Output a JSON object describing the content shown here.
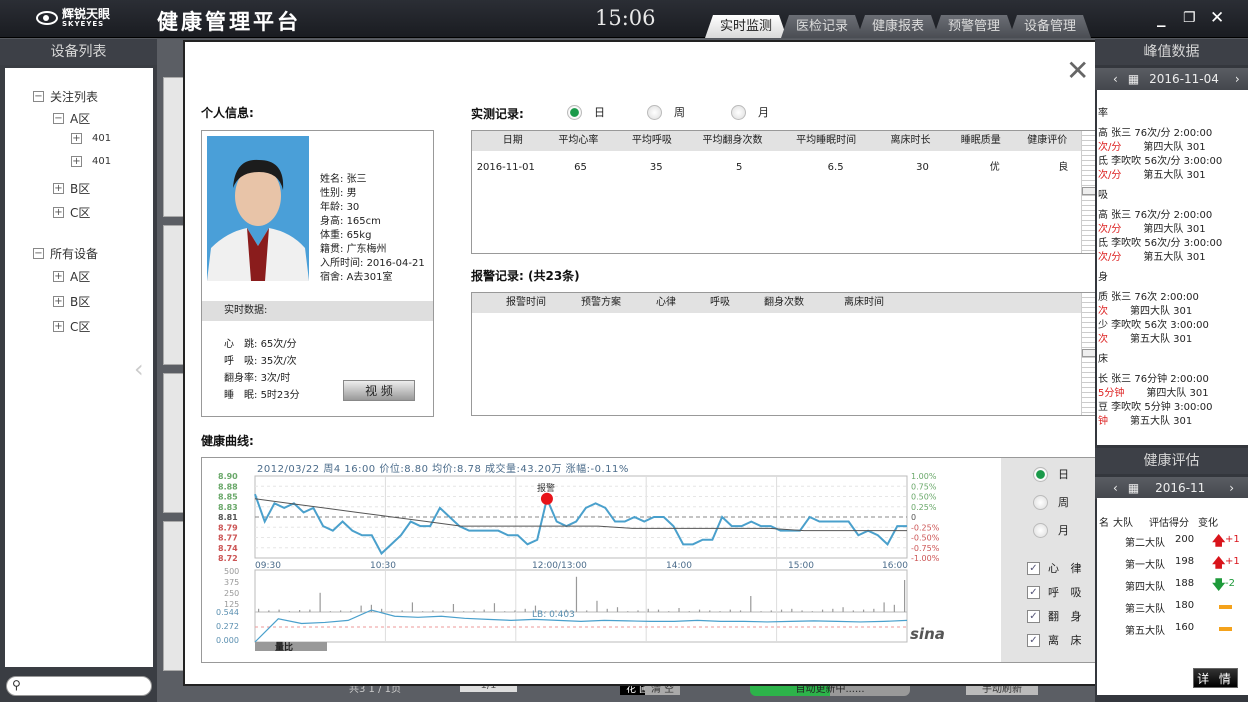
{
  "app": {
    "logo_cn": "辉锐天眼",
    "logo_en": "SKYEYES",
    "title": "健康管理平台",
    "clock": "15:06",
    "tabs": [
      {
        "label": "实时监测",
        "active": true
      },
      {
        "label": "医检记录"
      },
      {
        "label": "健康报表"
      },
      {
        "label": "预警管理"
      },
      {
        "label": "设备管理"
      }
    ]
  },
  "left": {
    "title": "设备列表",
    "tree": [
      {
        "label": "关注列表",
        "sign": "−"
      },
      {
        "label": "A区",
        "sign": "−"
      },
      {
        "label": "401",
        "sign": "+"
      },
      {
        "label": "401",
        "sign": "+"
      },
      {
        "label": "B区",
        "sign": "+"
      },
      {
        "label": "C区",
        "sign": "+"
      },
      {
        "label": "所有设备",
        "sign": "−"
      },
      {
        "label": "A区",
        "sign": "+"
      },
      {
        "label": "B区",
        "sign": "+"
      },
      {
        "label": "C区",
        "sign": "+"
      }
    ]
  },
  "bottom": {
    "under_texts": [
      "共3 1 / 1页",
      "1/1",
      "花 圃",
      "清 空",
      "自动更新中......",
      "手动刷新"
    ],
    "progress_color": "#2db34a"
  },
  "modal": {
    "personal_title": "个人信息:",
    "person": [
      {
        "k": "姓名",
        "v": "张三"
      },
      {
        "k": "性别",
        "v": "男"
      },
      {
        "k": "年龄",
        "v": "30"
      },
      {
        "k": "身高",
        "v": "165cm"
      },
      {
        "k": "体重",
        "v": "65kg"
      },
      {
        "k": "籍贯",
        "v": "广东梅州"
      },
      {
        "k": "入所时间",
        "v": "2016-04-21"
      },
      {
        "k": "宿舍",
        "v": "A去301室"
      }
    ],
    "realtime_title": "实时数据:",
    "realtime": [
      {
        "k": "心　跳",
        "v": "65次/分"
      },
      {
        "k": "呼　吸",
        "v": "35次/次"
      },
      {
        "k": "翻身率",
        "v": "3次/时"
      },
      {
        "k": "睡　眠",
        "v": "5时23分"
      }
    ],
    "video_button": "视 频",
    "records_title": "实测记录:",
    "period": [
      {
        "label": "日",
        "selected": true
      },
      {
        "label": "周"
      },
      {
        "label": "月"
      }
    ],
    "records": {
      "columns": [
        "日期",
        "平均心率",
        "平均呼吸",
        "平均翻身次数",
        "平均睡眠时间",
        "离床时长",
        "睡眠质量",
        "健康评价"
      ],
      "rows": [
        [
          "2016-11-01",
          "65",
          "35",
          "5",
          "6.5",
          "30",
          "优",
          "良"
        ]
      ]
    },
    "alarm_title": "报警记录:",
    "alarm_count": "(共23条)",
    "alarms": {
      "columns": [
        "报警时间",
        "预警方案",
        "心律",
        "呼吸",
        "翻身次数",
        "离床时间"
      ],
      "rows": []
    },
    "curve_title": "健康曲线:",
    "curve_period": [
      {
        "label": "日",
        "selected": true
      },
      {
        "label": "周"
      },
      {
        "label": "月"
      }
    ],
    "curve_series": [
      {
        "label": "心 律",
        "checked": true
      },
      {
        "label": "呼 吸",
        "checked": true
      },
      {
        "label": "翻 身",
        "checked": true
      },
      {
        "label": "离 床",
        "checked": true
      }
    ]
  },
  "chart_data": {
    "type": "line",
    "title": "2012/03/22 周4 16:00  价位:8.80  均价:8.78  成交量:43.20万  涨幅:-0.11%",
    "annotation": "报警",
    "watermark": "sina",
    "x_ticks": [
      "09:30",
      "10:30",
      "12:00/13:00",
      "14:00",
      "15:00",
      "16:00"
    ],
    "y_ticks_left": [
      "8.90",
      "8.88",
      "8.85",
      "8.83",
      "8.81",
      "8.79",
      "8.77",
      "8.74",
      "8.72"
    ],
    "y_ticks_right": [
      "1.00%",
      "0.75%",
      "0.50%",
      "0.25%",
      "0",
      "-0.25%",
      "-0.50%",
      "-0.75%",
      "-1.00%"
    ],
    "ylim": [
      8.72,
      8.9
    ],
    "price": [
      8.86,
      8.8,
      8.84,
      8.83,
      8.84,
      8.82,
      8.83,
      8.79,
      8.78,
      8.8,
      8.78,
      8.77,
      8.77,
      8.73,
      8.75,
      8.77,
      8.8,
      8.79,
      8.79,
      8.83,
      8.81,
      8.79,
      8.78,
      8.78,
      8.78,
      8.78,
      8.77,
      8.77,
      8.75,
      8.76,
      8.85,
      8.8,
      8.79,
      8.8,
      8.83,
      8.84,
      8.83,
      8.8,
      8.8,
      8.81,
      8.8,
      8.81,
      8.81,
      8.79,
      8.75,
      8.75,
      8.76,
      8.76,
      8.81,
      8.79,
      8.79,
      8.8,
      8.79,
      8.79,
      8.78,
      8.78,
      8.78,
      8.81,
      8.8,
      8.8,
      8.8,
      8.8,
      8.77,
      8.78,
      8.77,
      8.75,
      8.79,
      8.79
    ],
    "average": [
      8.85,
      8.84,
      8.83,
      8.82,
      8.81,
      8.8,
      8.79,
      8.79,
      8.79,
      8.79,
      8.79,
      8.785,
      8.785,
      8.785,
      8.785,
      8.785,
      8.78,
      8.78,
      8.78,
      8.78
    ],
    "alert_index": 30,
    "volume_ticks": [
      "500",
      "375",
      "250",
      "125"
    ],
    "volume": [
      40,
      20,
      30,
      10,
      25,
      30,
      240,
      10,
      20,
      15,
      80,
      90,
      40,
      10,
      20,
      120,
      10,
      20,
      15,
      100,
      10,
      20,
      30,
      110,
      10,
      20,
      40,
      80,
      10,
      20,
      30,
      440,
      20,
      140,
      40,
      60,
      10,
      20,
      40,
      30,
      10,
      50,
      10,
      30,
      20,
      10,
      30,
      20,
      200,
      10,
      20,
      30,
      40,
      20,
      10,
      30,
      40,
      60,
      20,
      30,
      40,
      120,
      90,
      400
    ],
    "lb_label": "LB: 0.403",
    "lb_ticks": [
      "0.544",
      "0.272",
      "0.000"
    ],
    "lb": [
      0.0,
      0.45,
      0.36,
      0.38,
      0.42,
      0.62,
      0.5,
      0.48,
      0.5,
      0.46,
      0.44,
      0.42,
      0.44,
      0.42,
      0.4,
      0.42,
      0.41,
      0.4,
      0.4,
      0.42,
      0.4,
      0.4,
      0.39,
      0.4,
      0.41,
      0.4,
      0.39,
      0.4,
      0.42
    ],
    "lb_tab": "量比"
  },
  "right": {
    "peak_title": "峰值数据",
    "peak_date": "2016-11-04",
    "peak_lines": [
      {
        "t": "率"
      },
      {
        "t": "高  张三  76次/分 2:00:00"
      },
      {
        "t": "次/分",
        "red": true,
        "t2": "第四大队 301"
      },
      {
        "t": "氐  李吹吹  56次/分 3:00:00"
      },
      {
        "t": "次/分",
        "red": true,
        "t2": "第五大队 301"
      },
      {
        "t": "吸"
      },
      {
        "t": "高  张三  76次/分 2:00:00"
      },
      {
        "t": "次/分",
        "red": true,
        "t2": "第四大队 301"
      },
      {
        "t": "氐  李吹吹  56次/分 3:00:00"
      },
      {
        "t": "次/分",
        "red": true,
        "t2": "第五大队 301"
      },
      {
        "t": "身"
      },
      {
        "t": "质  张三  76次 2:00:00"
      },
      {
        "t": "次",
        "red": true,
        "t2": "第四大队 301"
      },
      {
        "t": "少  李吹吹  56次 3:00:00"
      },
      {
        "t": "次",
        "red": true,
        "t2": "第五大队 301"
      },
      {
        "t": "床"
      },
      {
        "t": "长  张三  76分钟 2:00:00"
      },
      {
        "t": "5分钟",
        "red": true,
        "t2": "第四大队 301"
      },
      {
        "t": "豆  李吹吹  5分钟 3:00:00"
      },
      {
        "t": "钟",
        "red": true,
        "t2": "第五大队 301"
      }
    ],
    "eval_title": "健康评估",
    "eval_date": "2016-11",
    "eval_columns": [
      "名",
      "大队",
      "评估得分",
      "变化"
    ],
    "eval_rows": [
      {
        "team": "第二大队",
        "score": "200",
        "change": "+1",
        "dir": "up"
      },
      {
        "team": "第一大队",
        "score": "198",
        "change": "+1",
        "dir": "up"
      },
      {
        "team": "第四大队",
        "score": "188",
        "change": "-2",
        "dir": "down"
      },
      {
        "team": "第三大队",
        "score": "180",
        "change": "",
        "dir": "flat"
      },
      {
        "team": "第五大队",
        "score": "160",
        "change": "",
        "dir": "flat"
      }
    ],
    "detail_button": "详 情",
    "colors": {
      "up": "#d9141b",
      "down": "#1e9a3a",
      "flat": "#f4a21b"
    }
  }
}
